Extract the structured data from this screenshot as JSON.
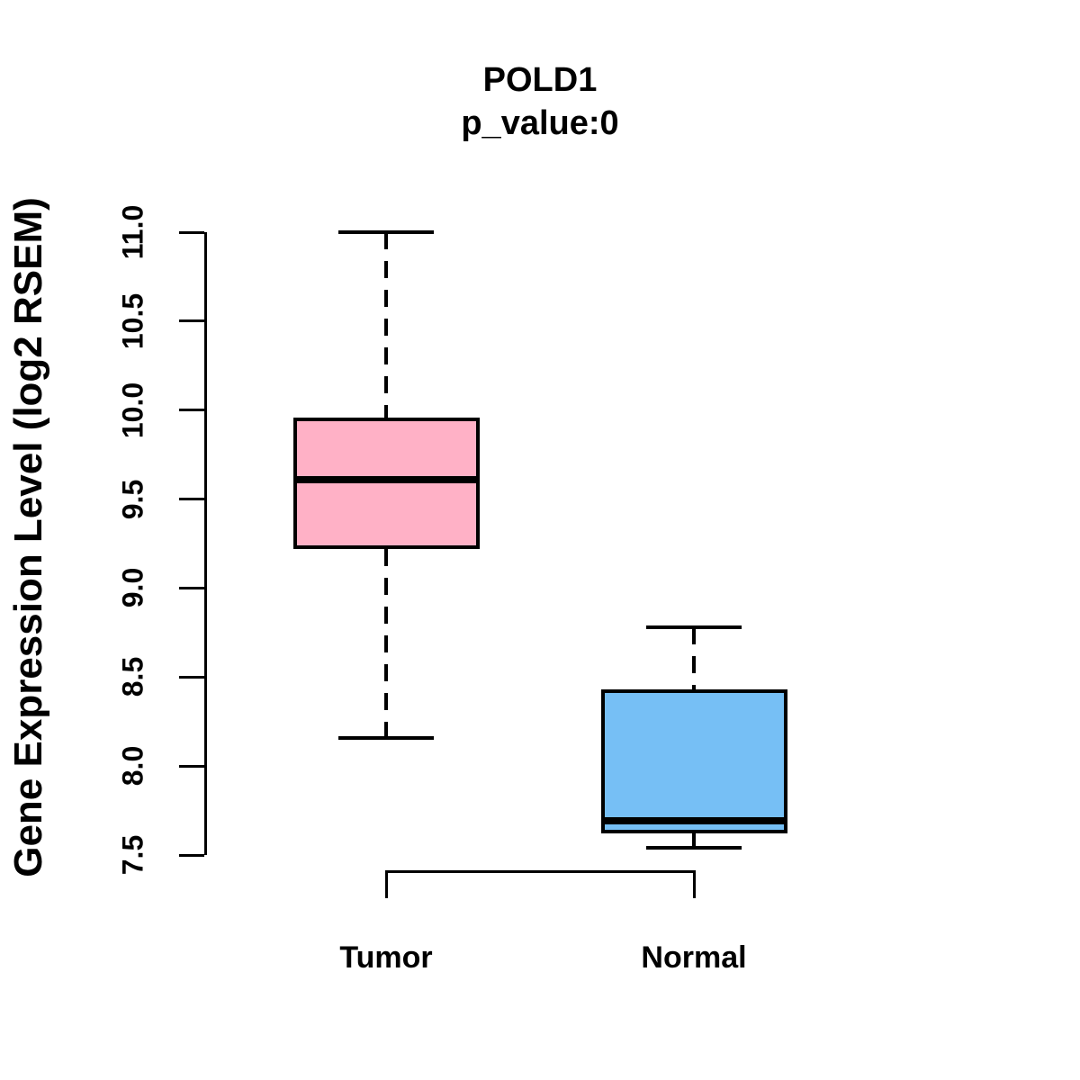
{
  "chart_data": {
    "type": "boxplot",
    "title": "POLD1",
    "subtitle": "p_value:0",
    "ylabel": "Gene Expression Level (log2 RSEM)",
    "xlabel": "",
    "ylim": [
      7.5,
      11.0
    ],
    "yticks": [
      7.5,
      8.0,
      8.5,
      9.0,
      9.5,
      10.0,
      10.5,
      11.0
    ],
    "ytick_labels": [
      "7.5",
      "8.0",
      "8.5",
      "9.0",
      "9.5",
      "10.0",
      "10.5",
      "11.0"
    ],
    "categories": [
      "Tumor",
      "Normal"
    ],
    "grid": false,
    "legend": "none",
    "series": [
      {
        "name": "Tumor",
        "fill_color": "#FFB1C6",
        "whisker_low": 8.16,
        "q1": 9.22,
        "median": 9.61,
        "q3": 9.96,
        "whisker_high": 11.0
      },
      {
        "name": "Normal",
        "fill_color": "#76BFF5",
        "whisker_low": 7.54,
        "q1": 7.62,
        "median": 7.69,
        "q3": 8.43,
        "whisker_high": 8.78
      }
    ],
    "comparison_bracket": {
      "from": "Tumor",
      "to": "Normal"
    },
    "stroke_color": "#000000",
    "background_color": "#FFFFFF"
  }
}
